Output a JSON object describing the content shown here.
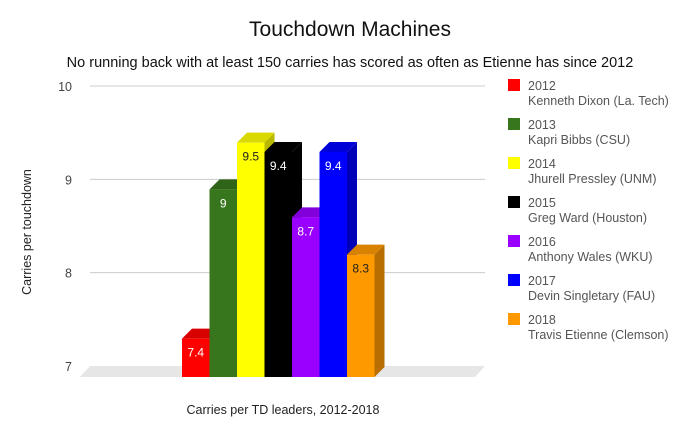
{
  "chart_data": {
    "type": "bar",
    "title": "Touchdown Machines",
    "subtitle": "No running back with at least 150 carries has scored as often as Etienne has since 2012",
    "xlabel": "Carries per TD leaders, 2012-2018",
    "ylabel": "Carries per touchdown",
    "ylim": [
      7,
      10
    ],
    "yticks": [
      "7",
      "8",
      "9",
      "10"
    ],
    "grid": true,
    "three_d": true,
    "legend_position": "right",
    "series": [
      {
        "year": "2012",
        "name": "Kenneth Dixon (La. Tech)",
        "value": 7.4,
        "label": "7.4",
        "color": "#ff0000",
        "label_color": "#ffffff"
      },
      {
        "year": "2013",
        "name": "Kapri Bibbs (CSU)",
        "value": 9,
        "label": "9",
        "color": "#38761d",
        "label_color": "#ffffff"
      },
      {
        "year": "2014",
        "name": "Jhurell Pressley (UNM)",
        "value": 9.5,
        "label": "9.5",
        "color": "#ffff00",
        "label_color": "#222222"
      },
      {
        "year": "2015",
        "name": "Greg Ward (Houston)",
        "value": 9.4,
        "label": "9.4",
        "color": "#000000",
        "label_color": "#ffffff"
      },
      {
        "year": "2016",
        "name": "Anthony Wales (WKU)",
        "value": 8.7,
        "label": "8.7",
        "color": "#9900ff",
        "label_color": "#ffffff"
      },
      {
        "year": "2017",
        "name": "Devin Singletary (FAU)",
        "value": 9.4,
        "label": "9.4",
        "color": "#0000ff",
        "label_color": "#ffffff"
      },
      {
        "year": "2018",
        "name": "Travis Etienne (Clemson)",
        "value": 8.3,
        "label": "8.3",
        "color": "#ff9900",
        "label_color": "#222222"
      }
    ]
  }
}
